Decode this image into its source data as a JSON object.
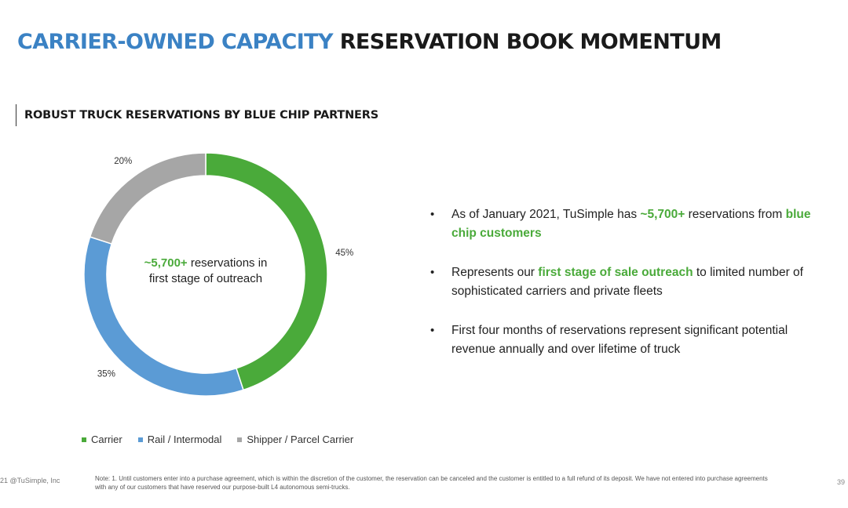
{
  "header": {
    "title_accent": "CARRIER-OWNED CAPACITY",
    "title_rest": "RESERVATION BOOK MOMENTUM",
    "subtitle": "ROBUST TRUCK RESERVATIONS BY BLUE CHIP PARTNERS"
  },
  "chart_data": {
    "type": "pie",
    "donut": true,
    "categories": [
      "Carrier",
      "Rail / Intermodal",
      "Shipper / Parcel Carrier"
    ],
    "values": [
      45,
      35,
      20
    ],
    "labels": [
      "45%",
      "35%",
      "20%"
    ],
    "colors": [
      "#4aaa3a",
      "#5b9bd5",
      "#a6a6a6"
    ],
    "legend_position": "bottom",
    "center": {
      "highlight": "~5,700+",
      "text": "reservations in first stage of outreach"
    }
  },
  "bullets": [
    {
      "parts": [
        {
          "text": "As of January 2021, TuSimple has ",
          "highlight": false
        },
        {
          "text": "~5,700+",
          "highlight": true
        },
        {
          "text": " reservations from ",
          "highlight": false
        },
        {
          "text": "blue chip customers",
          "highlight": true
        }
      ]
    },
    {
      "parts": [
        {
          "text": "Represents our ",
          "highlight": false
        },
        {
          "text": "first stage of sale outreach",
          "highlight": true
        },
        {
          "text": " to limited number of sophisticated carriers and private fleets",
          "highlight": false
        }
      ]
    },
    {
      "parts": [
        {
          "text": "First four months of reservations represent significant potential revenue annually and over lifetime of truck",
          "highlight": false
        }
      ]
    }
  ],
  "footer": {
    "copyright": "21 @TuSimple, Inc",
    "note": "Note: 1. Until customers enter into a purchase agreement, which is within the discretion of the customer, the reservation can be canceled and the customer is entitled to a full refund of its deposit. We have not entered into purchase agreements with any of our customers that have reserved our purpose-built L4 autonomous semi-trucks.",
    "page_number": "39"
  }
}
